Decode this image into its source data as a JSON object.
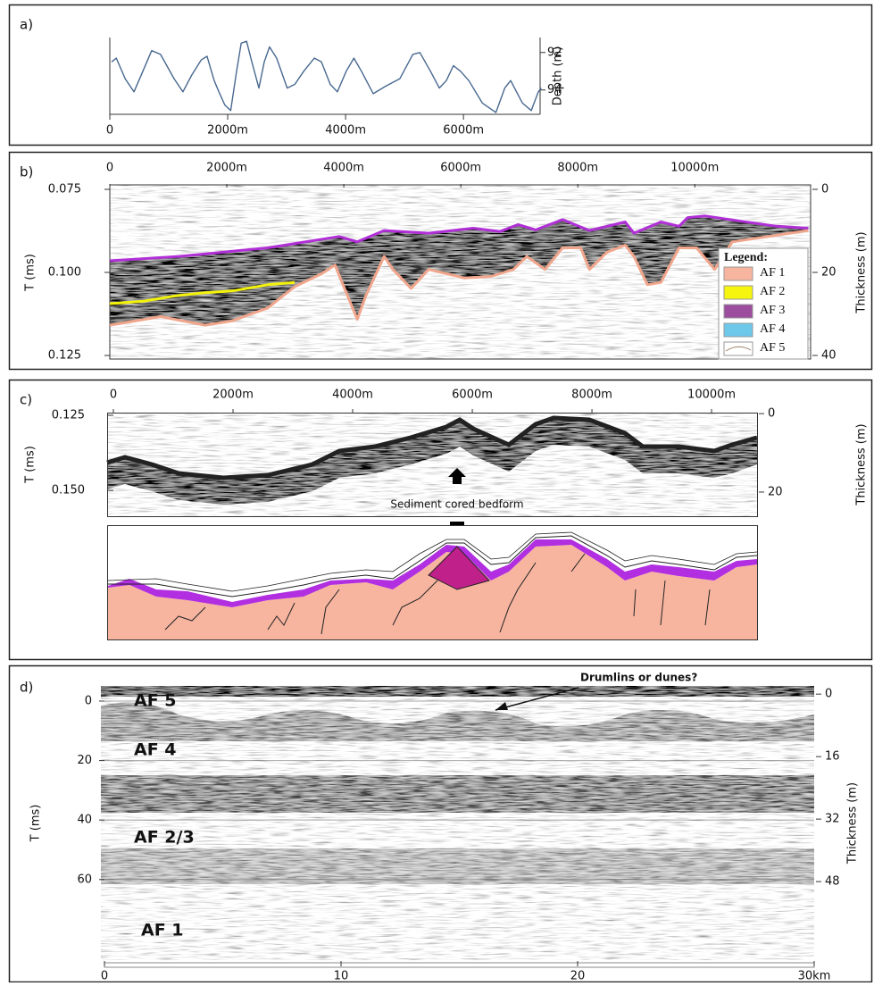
{
  "chart_data": [
    {
      "panel_label": "a)",
      "type": "line",
      "y_label": "Depth (m)",
      "xlim": [
        0,
        7300
      ],
      "xticks": [
        0,
        {
          "value": 2000,
          "label": "2000m"
        },
        {
          "value": 4000,
          "label": "4000m"
        },
        {
          "value": 6000,
          "label": "6000m"
        }
      ],
      "ylim": [
        95.3,
        91.2
      ],
      "yticks": [
        92,
        94
      ],
      "series": [
        {
          "color": "#48688f",
          "x": [
            30,
            110,
            260,
            410,
            560,
            710,
            860,
            1090,
            1240,
            1390,
            1550,
            1650,
            1770,
            1850,
            1950,
            2050,
            2150,
            2230,
            2320,
            2410,
            2530,
            2620,
            2710,
            2830,
            3010,
            3140,
            3290,
            3470,
            3590,
            3740,
            3860,
            4010,
            4140,
            4270,
            4470,
            4680,
            4920,
            5140,
            5260,
            5440,
            5590,
            5710,
            5830,
            5950,
            6090,
            6320,
            6550,
            6700,
            6800,
            7000,
            7150,
            7270,
            7320
          ],
          "values": [
            92.5,
            92.3,
            93.4,
            94.1,
            93.0,
            91.9,
            92.1,
            93.4,
            94.1,
            93.2,
            92.4,
            92.2,
            93.5,
            94.1,
            94.8,
            95.1,
            93.0,
            91.5,
            91.4,
            92.5,
            93.9,
            92.5,
            91.7,
            92.3,
            93.9,
            93.7,
            93.0,
            92.3,
            92.5,
            93.7,
            94.1,
            93.0,
            92.3,
            93.0,
            94.2,
            93.8,
            93.4,
            92.1,
            92.0,
            93.0,
            93.9,
            93.5,
            92.7,
            93.0,
            93.5,
            94.7,
            95.2,
            93.9,
            93.5,
            94.7,
            95.1,
            94.1,
            93.9
          ]
        }
      ]
    },
    {
      "panel_label": "b)",
      "type": "seismic",
      "y_label": "T (ms)",
      "y2_label": "Thickness (m)",
      "xlim": [
        0,
        11980
      ],
      "xticks": [
        0,
        {
          "value": 2000,
          "label": "2000m"
        },
        {
          "value": 4000,
          "label": "4000m"
        },
        {
          "value": 6000,
          "label": "6000m"
        },
        {
          "value": 8000,
          "label": "8000m"
        },
        {
          "value": 10000,
          "label": "10000m"
        }
      ],
      "ylim": [
        0.125,
        0.075
      ],
      "yticks": [
        0.075,
        {
          "value": 0.1,
          "label": "0.100"
        },
        0.125
      ],
      "y2lim": [
        40,
        0
      ],
      "y2ticks": [
        0,
        20,
        40
      ],
      "series": [
        {
          "color": "#b02fd6",
          "x": [
            0,
            1180,
            2700,
            3920,
            4230,
            4690,
            5450,
            6210,
            6670,
            6980,
            7280,
            7740,
            8200,
            8810,
            8960,
            9420,
            9730,
            9880,
            10180,
            10790,
            11400,
            11940
          ],
          "values": [
            0.0965,
            0.0952,
            0.0926,
            0.0892,
            0.0908,
            0.0874,
            0.0882,
            0.0867,
            0.0877,
            0.0856,
            0.0872,
            0.0841,
            0.0874,
            0.0848,
            0.0882,
            0.0848,
            0.0861,
            0.0835,
            0.083,
            0.0846,
            0.0861,
            0.0867
          ]
        },
        {
          "color": "#f0a68c",
          "x": [
            0,
            870,
            1630,
            2090,
            2700,
            3160,
            3620,
            3850,
            4000,
            4230,
            4380,
            4690,
            4840,
            5150,
            5450,
            5760,
            6060,
            6520,
            6900,
            7130,
            7440,
            7740,
            8050,
            8200,
            8500,
            8810,
            8960,
            9190,
            9420,
            9730,
            10030,
            10340,
            10640,
            11250,
            11940
          ],
          "values": [
            0.1159,
            0.1133,
            0.1159,
            0.1146,
            0.1107,
            0.1043,
            0.1004,
            0.0978,
            0.1043,
            0.1141,
            0.1069,
            0.0952,
            0.0991,
            0.1048,
            0.0991,
            0.1004,
            0.1017,
            0.1012,
            0.0991,
            0.0952,
            0.0991,
            0.0926,
            0.0926,
            0.0991,
            0.0939,
            0.0918,
            0.0952,
            0.1037,
            0.103,
            0.0926,
            0.0926,
            0.0991,
            0.0908,
            0.0892,
            0.0874
          ]
        },
        {
          "color": "#f2f20a",
          "x": [
            0,
            560,
            1180,
            1630,
            2090,
            2700,
            3160
          ],
          "values": [
            0.1094,
            0.1087,
            0.1069,
            0.1061,
            0.1056,
            0.1037,
            0.103
          ]
        }
      ],
      "legend": {
        "title": "Legend:",
        "entries": [
          {
            "label": "AF 1",
            "color": "#f7b5a0"
          },
          {
            "label": "AF 2",
            "color": "#f5f50f"
          },
          {
            "label": "AF 3",
            "color": "#9c4d9e"
          },
          {
            "label": "AF 4",
            "color": "#6ec8ea"
          },
          {
            "label": "AF 5",
            "color": "#ffffff"
          }
        ]
      }
    },
    {
      "panel_label": "c)",
      "type": "seismic",
      "y_label": "T (ms)",
      "y2_label": "Thickness (m)",
      "xlim": [
        0,
        10760
      ],
      "xticks": [
        0,
        {
          "value": 2000,
          "label": "2000m"
        },
        {
          "value": 4000,
          "label": "4000m"
        },
        {
          "value": 6000,
          "label": "6000m"
        },
        {
          "value": 8000,
          "label": "8000m"
        },
        {
          "value": 10000,
          "label": "10000m"
        }
      ],
      "ylim": [
        0.158,
        0.1247
      ],
      "yticks": [
        0.125,
        {
          "value": 0.15,
          "label": "0.150"
        }
      ],
      "y2lim": [
        25.7,
        0.2
      ],
      "y2ticks": [
        0,
        20
      ],
      "annotation": "Sediment cored bedform"
    },
    {
      "panel_label": "d)",
      "type": "seismic",
      "y_label": "T (ms)",
      "y2_label": "Thickness (m)",
      "xlim": [
        0,
        30
      ],
      "xticks": [
        0,
        10,
        20,
        {
          "value": 30,
          "label": "30km"
        }
      ],
      "ylim": [
        87.1,
        -5.1
      ],
      "yticks": [
        0,
        20,
        40,
        60
      ],
      "y2lim": [
        68.1,
        -2.1
      ],
      "y2ticks": [
        0,
        16,
        32,
        48
      ],
      "grid": true,
      "unit_labels": [
        "AF 5",
        "AF 4",
        "AF 2/3",
        "AF 1"
      ],
      "annotation": "Drumlins or dunes?"
    }
  ]
}
